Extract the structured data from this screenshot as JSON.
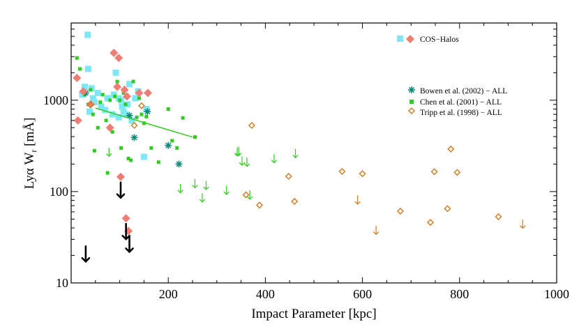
{
  "chart_data": {
    "type": "scatter",
    "title": "",
    "xlabel": "Impact Parameter [kpc]",
    "ylabel_parts": {
      "prefix": "Ly",
      "greek": "α",
      "mid": " W",
      "sub": "r",
      "units": " [mÅ]"
    },
    "xlim": [
      0,
      1000
    ],
    "ylim": [
      10,
      7000
    ],
    "yscale": "log",
    "x_ticks": [
      {
        "value": 200,
        "label": "200"
      },
      {
        "value": 400,
        "label": "400"
      },
      {
        "value": 600,
        "label": "600"
      },
      {
        "value": 800,
        "label": "800"
      },
      {
        "value": 1000,
        "label": "1000"
      }
    ],
    "y_ticks": [
      {
        "value": 10,
        "label": "10"
      },
      {
        "value": 100,
        "label": "100"
      },
      {
        "value": 1000,
        "label": "1000"
      }
    ],
    "colors": {
      "cos_square": "#7de8f5",
      "cos_diamond": "#f07d74",
      "bowen": "#138a78",
      "chen": "#2dcc1f",
      "tripp": "#d4781c",
      "cos_limit": "#000000"
    },
    "legend": {
      "cos_halos": "COS−Halos",
      "bowen": "Bowen et al. (2002) − ALL",
      "chen": "Chen et al. (2001) − ALL",
      "tripp": "Tripp et al. (1998) − ALL"
    },
    "series": [
      {
        "name": "COS-Halos (squares)",
        "marker": "square",
        "color_key": "cos_square",
        "points": [
          [
            34,
            5200
          ],
          [
            35,
            2200
          ],
          [
            28,
            1400
          ],
          [
            23,
            1150
          ],
          [
            42,
            1350
          ],
          [
            45,
            1050
          ],
          [
            55,
            1200
          ],
          [
            48,
            950
          ],
          [
            62,
            850
          ],
          [
            38,
            750
          ],
          [
            70,
            780
          ],
          [
            75,
            1050
          ],
          [
            85,
            700
          ],
          [
            88,
            1150
          ],
          [
            92,
            2000
          ],
          [
            98,
            1050
          ],
          [
            103,
            1000
          ],
          [
            105,
            850
          ],
          [
            108,
            750
          ],
          [
            112,
            700
          ],
          [
            116,
            900
          ],
          [
            120,
            1500
          ],
          [
            125,
            600
          ],
          [
            132,
            1050
          ],
          [
            138,
            1250
          ],
          [
            150,
            240
          ],
          [
            155,
            800
          ],
          [
            98,
            650
          ]
        ]
      },
      {
        "name": "COS-Halos (diamonds)",
        "marker": "diamond",
        "color_key": "cos_diamond",
        "points": [
          [
            88,
            3300
          ],
          [
            98,
            2900
          ],
          [
            12,
            1750
          ],
          [
            14,
            600
          ],
          [
            25,
            1250
          ],
          [
            40,
            900
          ],
          [
            80,
            500
          ],
          [
            95,
            1400
          ],
          [
            110,
            1300
          ],
          [
            115,
            1100
          ],
          [
            140,
            1200
          ],
          [
            158,
            1200
          ],
          [
            102,
            145
          ],
          [
            113,
            51
          ],
          [
            118,
            37
          ]
        ]
      },
      {
        "name": "COS-Halos upper limits",
        "marker": "arrow",
        "color_key": "cos_limit",
        "points": [
          [
            30,
            29
          ],
          [
            102,
            145
          ],
          [
            113,
            51
          ],
          [
            120,
            37
          ]
        ]
      },
      {
        "name": "Bowen et al. (2002) - ALL",
        "marker": "asterisk",
        "color_key": "bowen",
        "points": [
          [
            30,
            1200
          ],
          [
            120,
            680
          ],
          [
            130,
            390
          ],
          [
            200,
            320
          ],
          [
            222,
            200
          ],
          [
            157,
            750
          ]
        ]
      },
      {
        "name": "Chen et al. (2001) - ALL",
        "marker": "small-square",
        "color_key": "chen",
        "points": [
          [
            12,
            2900
          ],
          [
            18,
            2200
          ],
          [
            28,
            1150
          ],
          [
            35,
            900
          ],
          [
            40,
            1300
          ],
          [
            45,
            700
          ],
          [
            48,
            280
          ],
          [
            55,
            500
          ],
          [
            60,
            950
          ],
          [
            65,
            1150
          ],
          [
            72,
            600
          ],
          [
            75,
            160
          ],
          [
            80,
            1000
          ],
          [
            85,
            450
          ],
          [
            90,
            1100
          ],
          [
            95,
            1600
          ],
          [
            100,
            1000
          ],
          [
            103,
            300
          ],
          [
            108,
            1200
          ],
          [
            112,
            900
          ],
          [
            118,
            230
          ],
          [
            123,
            220
          ],
          [
            128,
            1600
          ],
          [
            135,
            650
          ],
          [
            140,
            1050
          ],
          [
            145,
            700
          ],
          [
            150,
            560
          ],
          [
            155,
            660
          ],
          [
            165,
            300
          ],
          [
            180,
            210
          ],
          [
            200,
            800
          ],
          [
            208,
            360
          ],
          [
            218,
            300
          ],
          [
            230,
            640
          ],
          [
            255,
            395
          ]
        ]
      },
      {
        "name": "Chen et al. (2001) - limits",
        "marker": "arrow",
        "color_key": "chen",
        "points": [
          [
            78,
            300
          ],
          [
            255,
            136
          ],
          [
            345,
            305
          ],
          [
            352,
            240
          ],
          [
            368,
            102
          ],
          [
            225,
            120
          ],
          [
            278,
            130
          ],
          [
            320,
            115
          ],
          [
            342,
            302
          ],
          [
            362,
            233
          ],
          [
            418,
            255
          ],
          [
            462,
            290
          ],
          [
            270,
            95
          ]
        ]
      },
      {
        "name": "Tripp et al. (1998) - ALL",
        "marker": "open-diamond",
        "color_key": "tripp",
        "points": [
          [
            40,
            890
          ],
          [
            145,
            870
          ],
          [
            130,
            530
          ],
          [
            372,
            530
          ],
          [
            360,
            92
          ],
          [
            388,
            71
          ],
          [
            448,
            147
          ],
          [
            460,
            78
          ],
          [
            558,
            166
          ],
          [
            600,
            157
          ],
          [
            678,
            61
          ],
          [
            740,
            46
          ],
          [
            748,
            165
          ],
          [
            775,
            65
          ],
          [
            782,
            292
          ],
          [
            795,
            162
          ],
          [
            880,
            53
          ]
        ]
      },
      {
        "name": "Tripp et al. (1998) - limits",
        "marker": "arrow",
        "color_key": "tripp",
        "points": [
          [
            590,
            90
          ],
          [
            628,
            42
          ],
          [
            930,
            49
          ]
        ]
      }
    ],
    "fit_line": {
      "color_key": "chen",
      "points": [
        [
          50,
          820
        ],
        [
          250,
          395
        ]
      ]
    }
  }
}
